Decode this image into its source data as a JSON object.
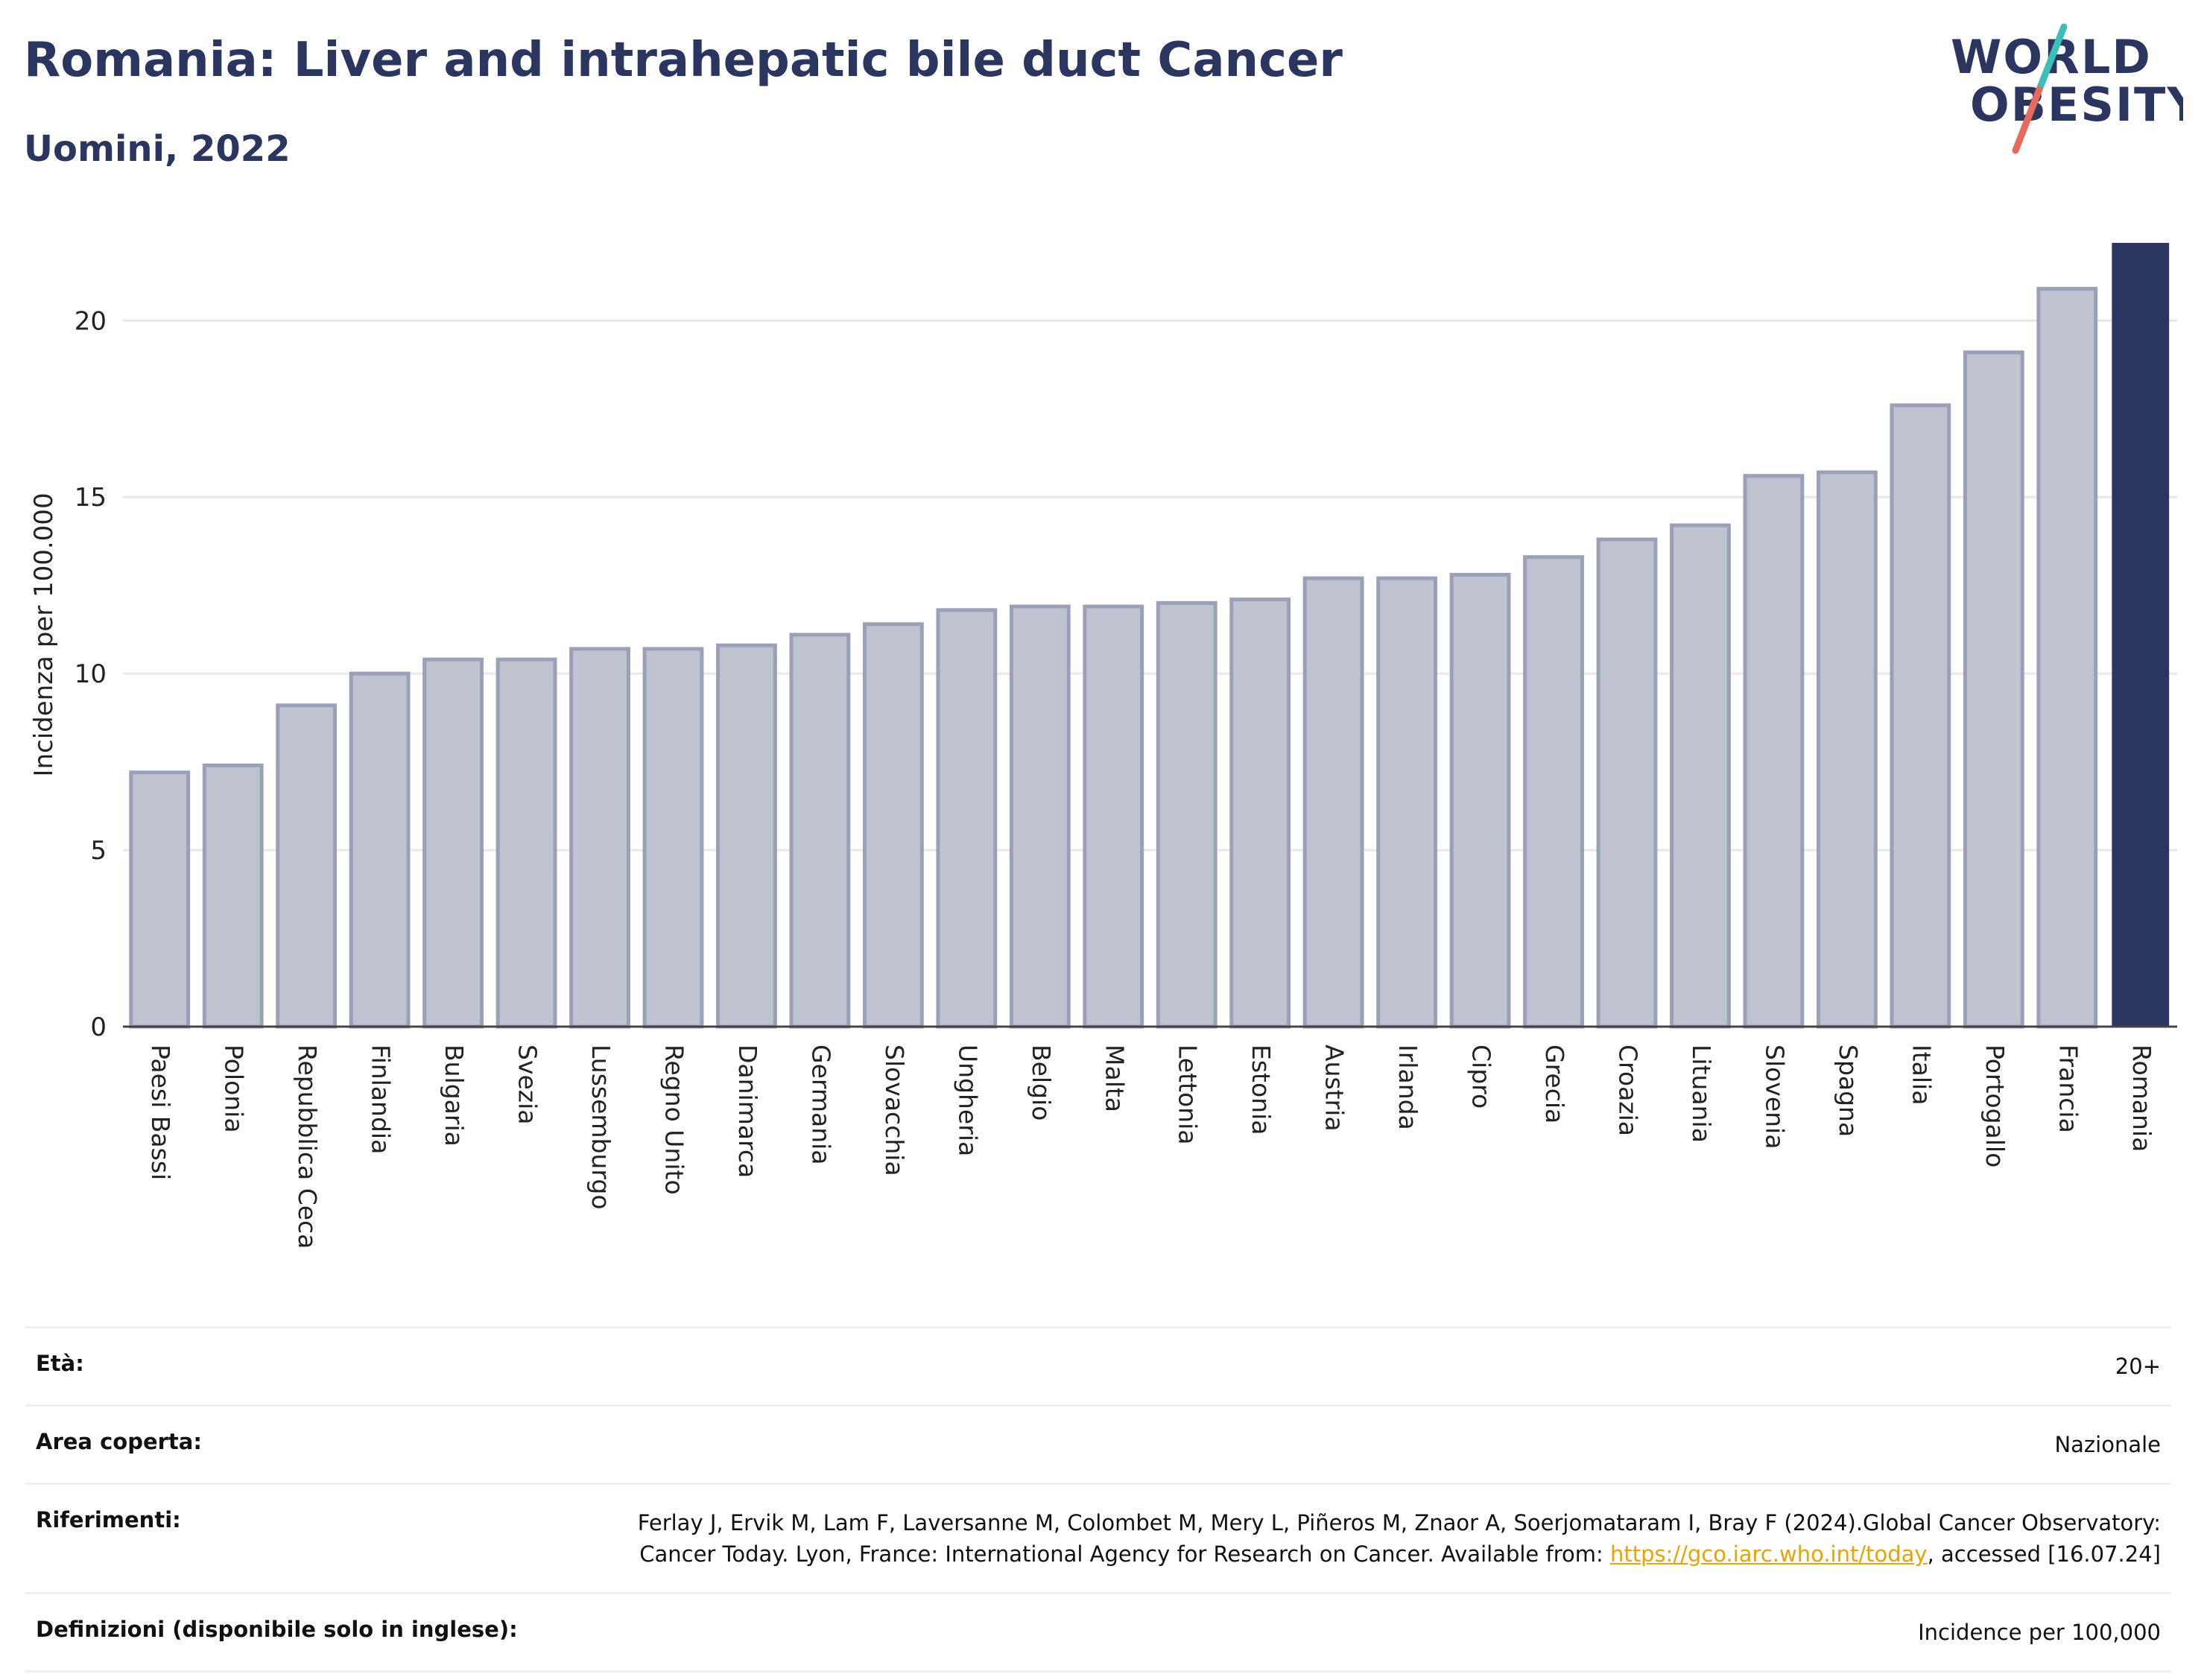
{
  "title": "Romania: Liver and intrahepatic bile duct Cancer",
  "subtitle": "Uomini, 2022",
  "logo": {
    "line1": "WORLD",
    "line2": "OBESITY"
  },
  "colors": {
    "bar": "#bfc3d0",
    "bar_stroke": "#9aa0b8",
    "highlight": "#2a3560",
    "grid": "#e6e8ee",
    "accent_teal": "#3bbfb6",
    "accent_red": "#e86a5c"
  },
  "chart_data": {
    "type": "bar",
    "categories": [
      "Paesi Bassi",
      "Polonia",
      "Repubblica Ceca",
      "Finlandia",
      "Bulgaria",
      "Svezia",
      "Lussemburgo",
      "Regno Unito",
      "Danimarca",
      "Germania",
      "Slovacchia",
      "Ungheria",
      "Belgio",
      "Malta",
      "Lettonia",
      "Estonia",
      "Austria",
      "Irlanda",
      "Cipro",
      "Grecia",
      "Croazia",
      "Lituania",
      "Slovenia",
      "Spagna",
      "Italia",
      "Portogallo",
      "Francia",
      "Romania"
    ],
    "values": [
      7.2,
      7.4,
      9.1,
      10.0,
      10.4,
      10.4,
      10.7,
      10.7,
      10.8,
      11.1,
      11.4,
      11.8,
      11.9,
      11.9,
      12.0,
      12.1,
      12.7,
      12.7,
      12.8,
      13.3,
      13.8,
      14.2,
      15.6,
      15.7,
      17.6,
      19.1,
      20.9,
      22.2
    ],
    "highlight": "Romania",
    "ylabel": "Incidenza per 100.000",
    "ylim": [
      0,
      22.2
    ],
    "yticks": [
      0,
      5,
      10,
      15,
      20
    ],
    "grid": true
  },
  "info": {
    "age_label": "Età:",
    "age_value": "20+",
    "area_label": "Area coperta:",
    "area_value": "Nazionale",
    "ref_label": "Riferimenti:",
    "ref_text_1": "Ferlay J, Ervik M, Lam F, Laversanne M, Colombet M, Mery L, Piñeros M, Znaor A, Soerjomataram I, Bray F (2024).Global Cancer Observatory: Cancer Today. Lyon, France: International Agency for Research on Cancer. Available from: ",
    "ref_link": "https://gco.iarc.who.int/today",
    "ref_text_2": ", accessed [16.07.24]",
    "def_label": "Definizioni (disponibile solo in inglese):",
    "def_value": "Incidence per 100,000"
  }
}
